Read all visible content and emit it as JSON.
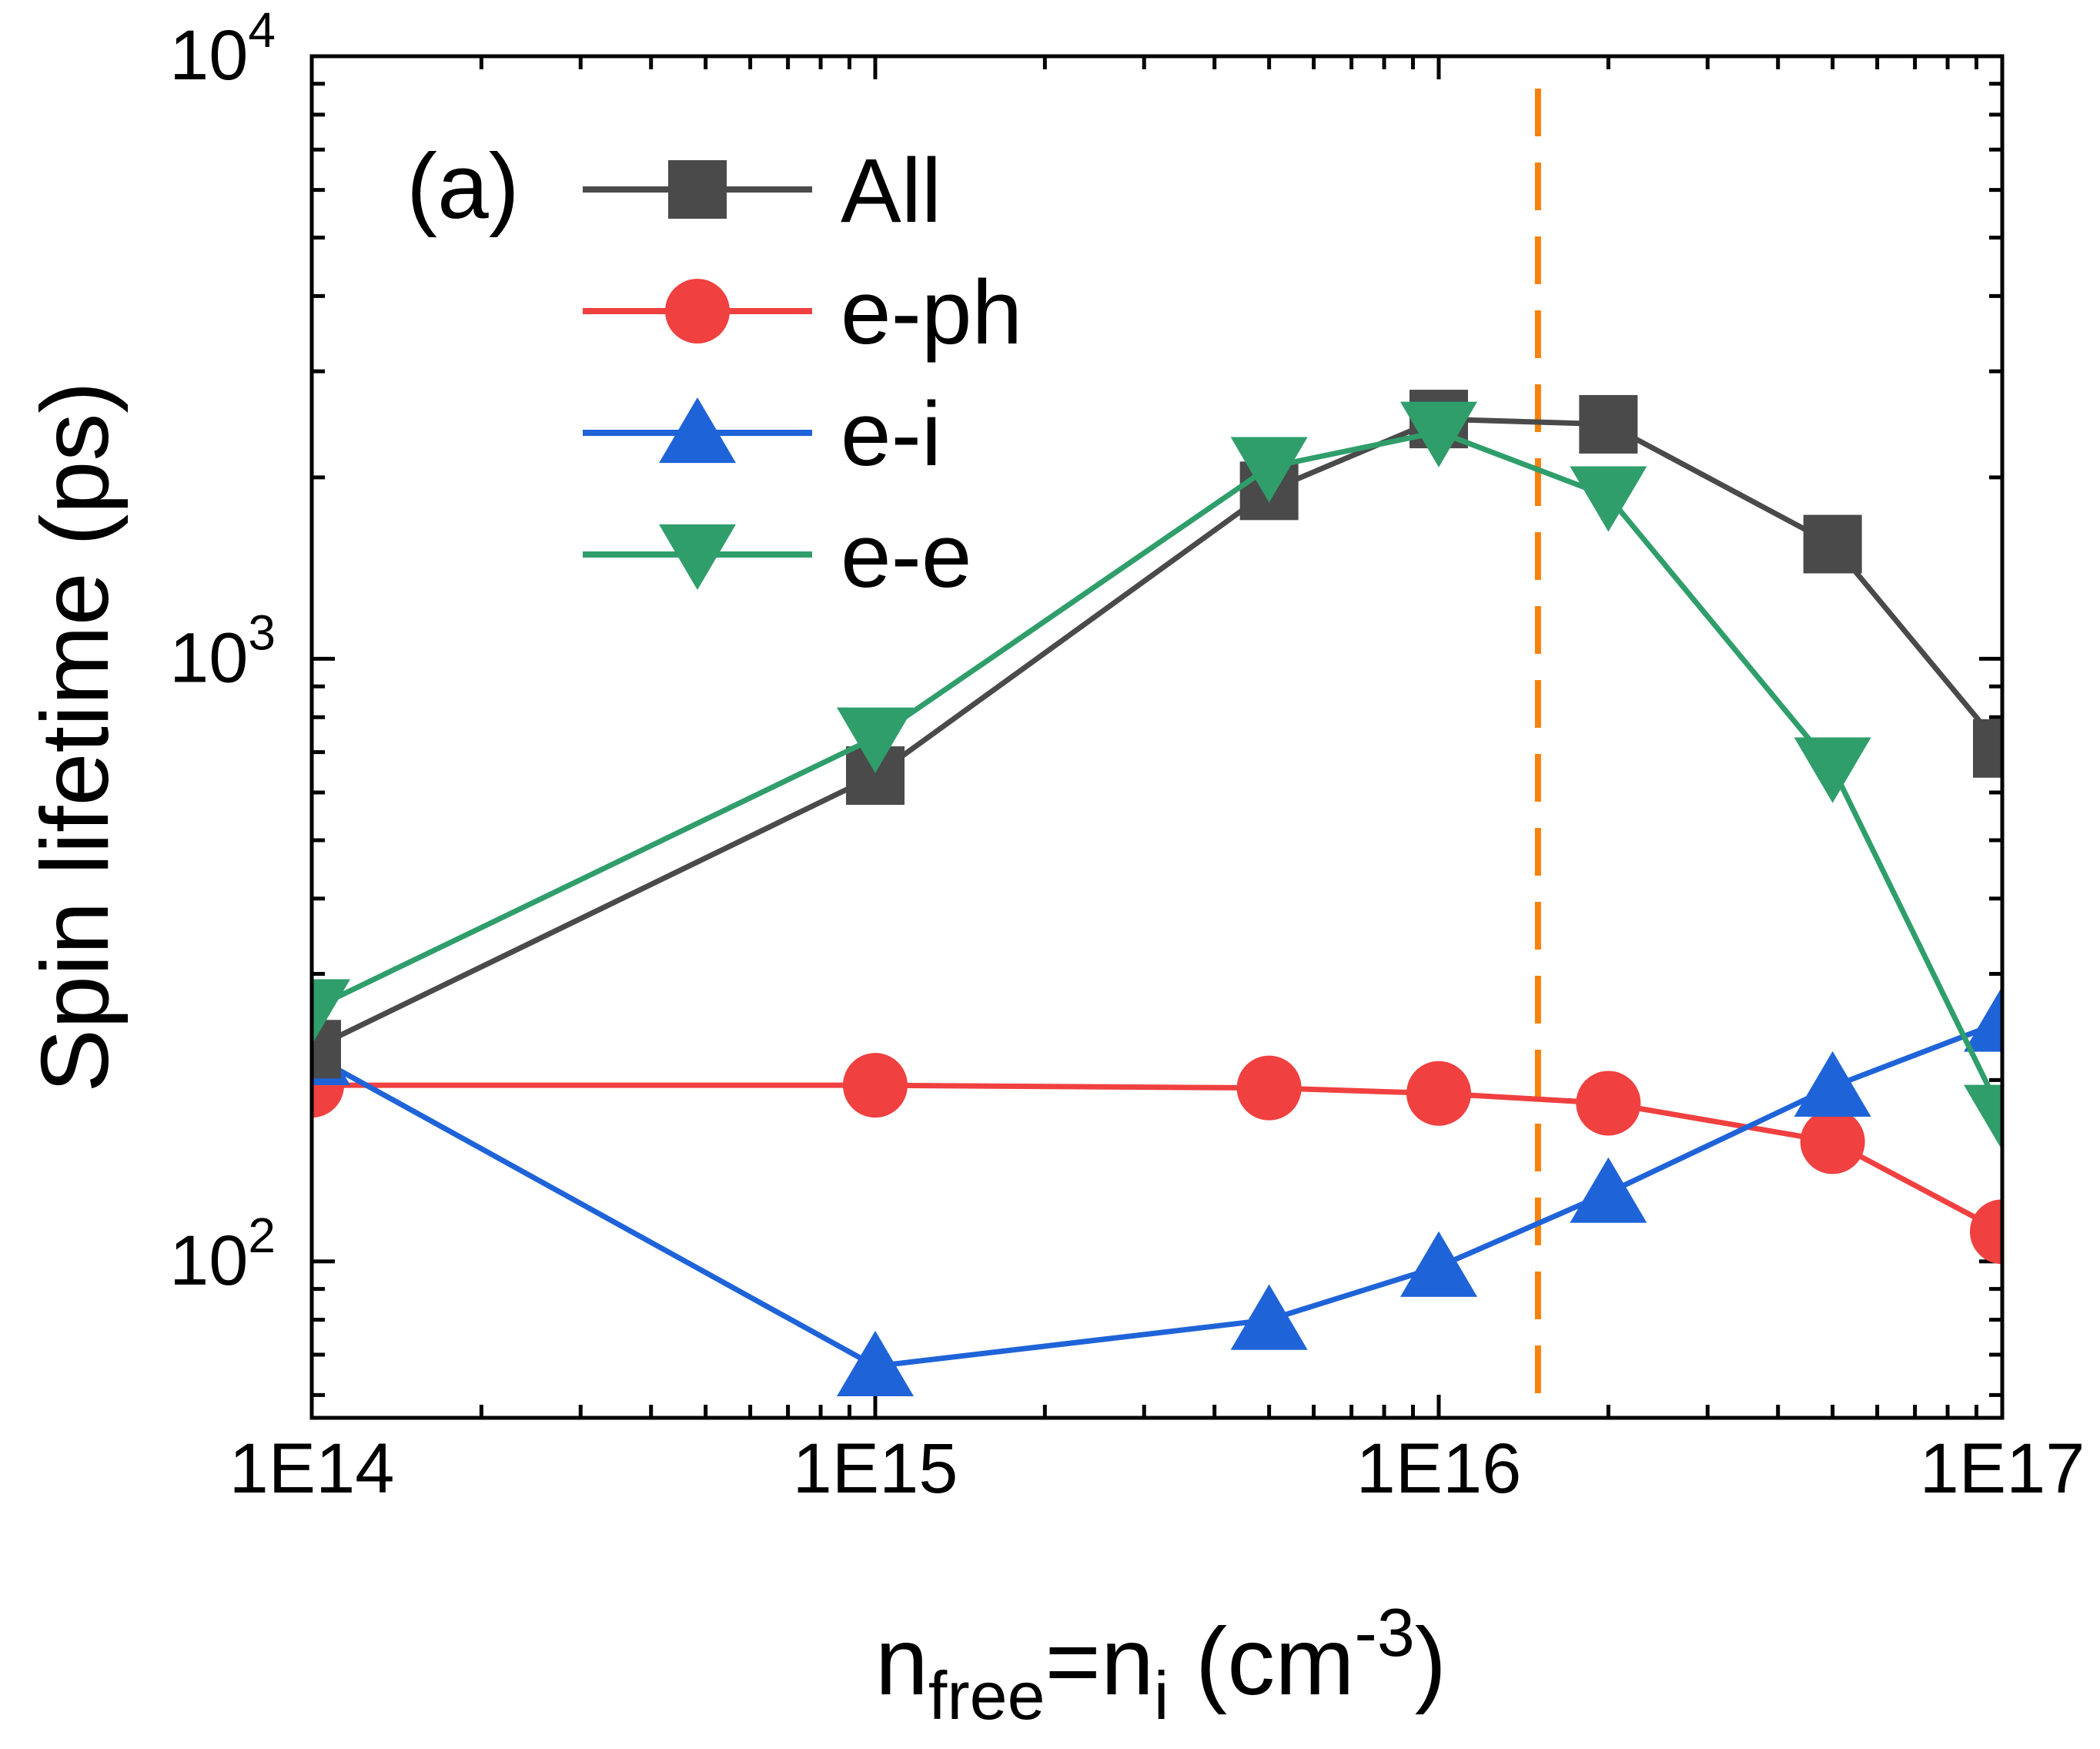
{
  "chart_data": {
    "type": "line",
    "panel_label": "(a)",
    "xlabel": {
      "main": "n",
      "sub": "free",
      "mid": "=n",
      "sub2": "i",
      "unit": " (cm",
      "sup": "-3",
      "close": ")"
    },
    "ylabel": "Spin lifetime (ps)",
    "x_scale": "log",
    "y_scale": "log",
    "xlim": [
      100000000000000.0,
      1e+17
    ],
    "ylim": [
      55,
      10000
    ],
    "x_ticks": [
      {
        "value": 100000000000000.0,
        "label": "1E14"
      },
      {
        "value": 1000000000000000.0,
        "label": "1E15"
      },
      {
        "value": 1e+16,
        "label": "1E16"
      },
      {
        "value": 1e+17,
        "label": "1E17"
      }
    ],
    "y_ticks": [
      {
        "value": 100,
        "base": "10",
        "exp": "2"
      },
      {
        "value": 1000,
        "base": "10",
        "exp": "3"
      },
      {
        "value": 10000,
        "base": "10",
        "exp": "4"
      }
    ],
    "x": [
      100000000000000.0,
      1000000000000000.0,
      5000000000000000.0,
      1e+16,
      2e+16,
      5e+16,
      1e+17
    ],
    "series": [
      {
        "name": "All",
        "color": "#4a4a4a",
        "marker": "square",
        "values": [
          225,
          640,
          1900,
          2500,
          2450,
          1550,
          710
        ]
      },
      {
        "name": "e-ph",
        "color": "#f04040",
        "marker": "circle",
        "values": [
          196,
          196,
          194,
          190,
          183,
          158,
          112
        ]
      },
      {
        "name": "e-i",
        "color": "#1f63d8",
        "marker": "triangle-up",
        "values": [
          220,
          67,
          80,
          98,
          130,
          195,
          250
        ]
      },
      {
        "name": "e-e",
        "color": "#2f9e6b",
        "marker": "triangle-down",
        "values": [
          262,
          740,
          2080,
          2380,
          1860,
          660,
          175
        ]
      }
    ],
    "reference_line": {
      "x": 1.5e+16,
      "color": "#f5820f",
      "style": "dashed"
    },
    "legend_position": "top-left",
    "grid": false
  }
}
